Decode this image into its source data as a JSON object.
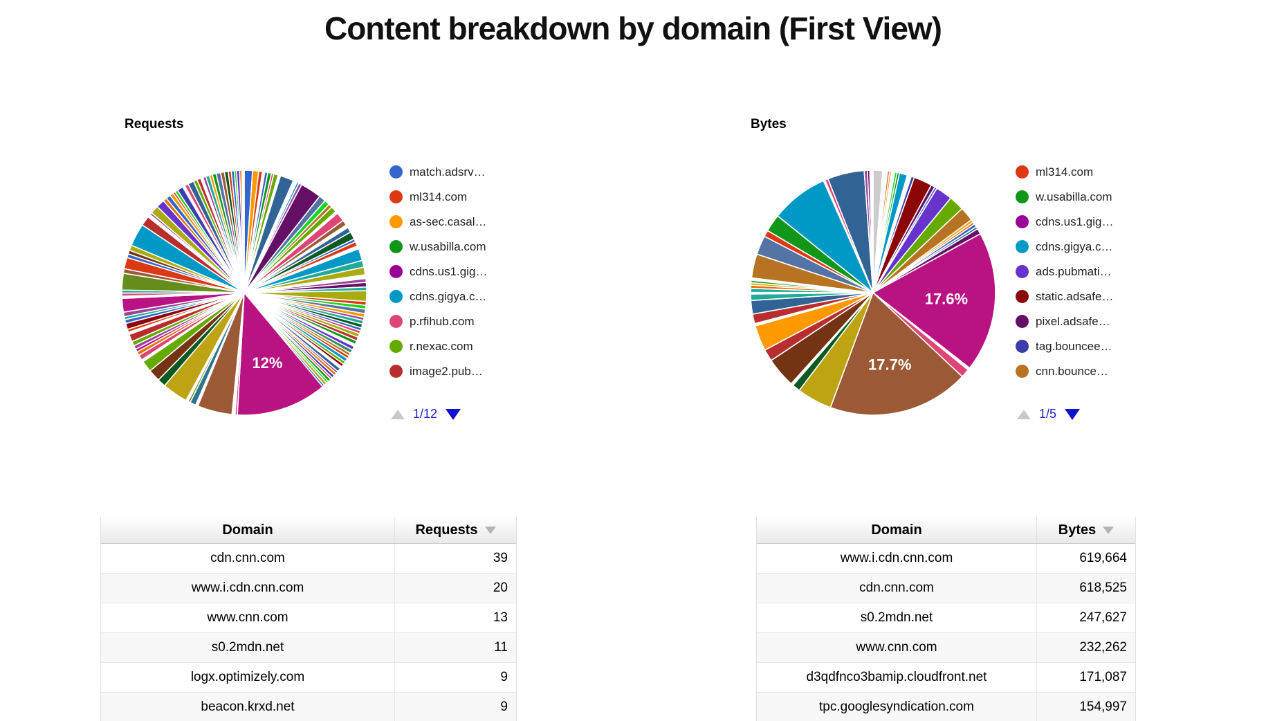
{
  "title": "Content breakdown by domain (First View)",
  "chart_data": [
    {
      "type": "pie",
      "title": "Requests",
      "legend_page": "1/12",
      "legend": [
        {
          "label": "match.adsrv…",
          "color": "#3366cc"
        },
        {
          "label": "ml314.com",
          "color": "#dc3912"
        },
        {
          "label": "as-sec.casal…",
          "color": "#ff9900"
        },
        {
          "label": "w.usabilla.com",
          "color": "#109618"
        },
        {
          "label": "cdns.us1.gig…",
          "color": "#990099"
        },
        {
          "label": "cdns.gigya.c…",
          "color": "#0099c6"
        },
        {
          "label": "p.rfihub.com",
          "color": "#dd4477"
        },
        {
          "label": "r.nexac.com",
          "color": "#66aa00"
        },
        {
          "label": "image2.pub…",
          "color": "#b82e2e"
        }
      ],
      "labeled_slices": [
        {
          "label": "12%",
          "value_pct": 12.0,
          "color": "#b91383"
        }
      ],
      "slices": [
        [
          "#3366cc",
          1.1
        ],
        [
          "#ff9900",
          0.8
        ],
        [
          "#dc3912",
          0.5
        ],
        [
          "#fff",
          0.3
        ],
        [
          "#3366cc",
          0.4
        ],
        [
          "#109618",
          0.5
        ],
        [
          "#dd4477",
          0.3
        ],
        [
          "#66aa00",
          0.6
        ],
        [
          "#fff",
          0.3
        ],
        [
          "#316395",
          1.8
        ],
        [
          "#fff",
          0.5
        ],
        [
          "#0099c6",
          0.3
        ],
        [
          "#994499",
          0.4
        ],
        [
          "#651067",
          2.8
        ],
        [
          "#5574a6",
          0.9
        ],
        [
          "#16d620",
          0.7
        ],
        [
          "#b77322",
          0.5
        ],
        [
          "#66aa00",
          0.8
        ],
        [
          "#fff",
          0.3
        ],
        [
          "#dd4477",
          1.2
        ],
        [
          "#9c5935",
          0.7
        ],
        [
          "#fff",
          0.4
        ],
        [
          "#316395",
          0.7
        ],
        [
          "#0c5922",
          1.0
        ],
        [
          "#3366cc",
          0.4
        ],
        [
          "#dc3912",
          0.6
        ],
        [
          "#fff",
          0.4
        ],
        [
          "#0099c6",
          1.6
        ],
        [
          "#22aa99",
          0.9
        ],
        [
          "#aaaa11",
          1.0
        ],
        [
          "#fff",
          0.5
        ],
        [
          "#994499",
          0.5
        ],
        [
          "#651067",
          0.6
        ],
        [
          "#22aa99",
          0.5
        ],
        [
          "#aaaa11",
          1.4
        ],
        [
          "#dc3912",
          0.5
        ],
        [
          "#16d620",
          0.5
        ],
        [
          "#5574a6",
          0.6
        ],
        [
          "#ff9900",
          0.5
        ],
        [
          "#994499",
          0.4
        ],
        [
          "#22aa99",
          0.5
        ],
        [
          "#0c5922",
          0.5
        ],
        [
          "#3366cc",
          0.4
        ],
        [
          "#dd4477",
          0.4
        ],
        [
          "#aaaa11",
          0.5
        ],
        [
          "#b82e2e",
          0.5
        ],
        [
          "#109618",
          0.5
        ],
        [
          "#fff",
          0.3
        ],
        [
          "#6633cc",
          0.5
        ],
        [
          "#329262",
          0.5
        ],
        [
          "#b77322",
          0.4
        ],
        [
          "#dc3912",
          0.4
        ],
        [
          "#0099c6",
          0.5
        ],
        [
          "#66aa00",
          0.4
        ],
        [
          "#8b0707",
          0.4
        ],
        [
          "#fff",
          0.3
        ],
        [
          "#316395",
          0.5
        ],
        [
          "#994499",
          0.3
        ],
        [
          "#e67300",
          0.4
        ],
        [
          "#3b3eac",
          0.4
        ],
        [
          "#dd4477",
          0.3
        ],
        [
          "#109618",
          0.4
        ],
        [
          "#16d620",
          0.3
        ],
        [
          "#aaaa11",
          0.4
        ],
        [
          "#3366cc",
          0.3
        ],
        [
          "#b91383",
          12.0,
          "12%"
        ],
        [
          "#dd4477",
          0.3
        ],
        [
          "#fff",
          0.4
        ],
        [
          "#9c5935",
          4.6
        ],
        [
          "#fff",
          0.3
        ],
        [
          "#2a778d",
          0.8
        ],
        [
          "#668d1c",
          0.3
        ],
        [
          "#fff",
          0.3
        ],
        [
          "#bea413",
          3.4
        ],
        [
          "#0c5922",
          1.1
        ],
        [
          "#743411",
          1.6
        ],
        [
          "#66aa00",
          1.5
        ],
        [
          "#fff",
          0.3
        ],
        [
          "#dd4477",
          0.7
        ],
        [
          "#e67300",
          0.5
        ],
        [
          "#b91383",
          0.4
        ],
        [
          "#994499",
          0.5
        ],
        [
          "#66aa00",
          0.6
        ],
        [
          "#b82e2e",
          1.0
        ],
        [
          "#fff",
          0.3
        ],
        [
          "#dc3912",
          0.4
        ],
        [
          "#8b0707",
          0.8
        ],
        [
          "#3366cc",
          0.5
        ],
        [
          "#22aa99",
          0.4
        ],
        [
          "#994499",
          0.6
        ],
        [
          "#b91383",
          1.8
        ],
        [
          "#fff",
          0.3
        ],
        [
          "#dd4477",
          0.4
        ],
        [
          "#22aa99",
          0.4
        ],
        [
          "#668d1c",
          2.2
        ],
        [
          "#9c5935",
          0.6
        ],
        [
          "#dc3912",
          1.5
        ],
        [
          "#3366cc",
          0.5
        ],
        [
          "#743411",
          0.5
        ],
        [
          "#aaaa11",
          0.7
        ],
        [
          "#0099c6",
          3.0
        ],
        [
          "#b82e2e",
          1.3
        ],
        [
          "#fff",
          0.4
        ],
        [
          "#994499",
          0.3
        ],
        [
          "#aaaa11",
          1.1
        ],
        [
          "#6633cc",
          1.1
        ],
        [
          "#e67300",
          0.5
        ],
        [
          "#3366cc",
          0.6
        ],
        [
          "#ff9900",
          0.5
        ],
        [
          "#dc3912",
          0.3
        ],
        [
          "#16d620",
          0.4
        ],
        [
          "#3b3eac",
          0.8
        ],
        [
          "#fff",
          0.3
        ],
        [
          "#dd4477",
          0.5
        ],
        [
          "#316395",
          0.8
        ],
        [
          "#66aa00",
          0.5
        ],
        [
          "#b82e2e",
          0.5
        ],
        [
          "#fff",
          0.3
        ],
        [
          "#994499",
          0.4
        ],
        [
          "#22aa99",
          0.5
        ],
        [
          "#ff9900",
          0.4
        ],
        [
          "#109618",
          0.5
        ],
        [
          "#5574a6",
          0.6
        ],
        [
          "#9c5935",
          0.5
        ],
        [
          "#0c5922",
          0.5
        ],
        [
          "#dc3912",
          0.4
        ],
        [
          "#3366cc",
          0.4
        ],
        [
          "#16d620",
          0.3
        ],
        [
          "#6633cc",
          0.4
        ],
        [
          "#e67300",
          0.3
        ],
        [
          "#fff",
          0.3
        ]
      ]
    },
    {
      "type": "pie",
      "title": "Bytes",
      "legend_page": "1/5",
      "legend": [
        {
          "label": "ml314.com",
          "color": "#dc3912"
        },
        {
          "label": "w.usabilla.com",
          "color": "#109618"
        },
        {
          "label": "cdns.us1.gig…",
          "color": "#990099"
        },
        {
          "label": "cdns.gigya.c…",
          "color": "#0099c6"
        },
        {
          "label": "ads.pubmati…",
          "color": "#6633cc"
        },
        {
          "label": "static.adsafe…",
          "color": "#8b0707"
        },
        {
          "label": "pixel.adsafe…",
          "color": "#651067"
        },
        {
          "label": "tag.bouncee…",
          "color": "#3b3eac"
        },
        {
          "label": "cnn.bounce…",
          "color": "#b77322"
        }
      ],
      "labeled_slices": [
        {
          "label": "17.6%",
          "value_pct": 17.6,
          "color": "#b91383"
        },
        {
          "label": "17.7%",
          "value_pct": 17.7,
          "color": "#9c5935"
        }
      ],
      "slices": [
        [
          "#cccccc",
          1.2
        ],
        [
          "#fff",
          0.6
        ],
        [
          "#dc3912",
          0.25
        ],
        [
          "#ff9900",
          0.25
        ],
        [
          "#fff",
          0.4
        ],
        [
          "#16d620",
          0.3
        ],
        [
          "#109618",
          0.3
        ],
        [
          "#0099c6",
          1.0
        ],
        [
          "#fff",
          0.5
        ],
        [
          "#3b3eac",
          0.4
        ],
        [
          "#8b0707",
          2.3
        ],
        [
          "#651067",
          0.5
        ],
        [
          "#3366cc",
          0.3
        ],
        [
          "#6633cc",
          2.1
        ],
        [
          "#66aa00",
          1.9
        ],
        [
          "#b77322",
          1.8
        ],
        [
          "#ff9900",
          0.35
        ],
        [
          "#e67300",
          0.3
        ],
        [
          "#3366cc",
          0.4
        ],
        [
          "#316395",
          0.3
        ],
        [
          "#651067",
          0.7
        ],
        [
          "#b91383",
          17.6,
          "17.6%"
        ],
        [
          "#fff",
          0.3
        ],
        [
          "#dd4477",
          1.1
        ],
        [
          "#9c5935",
          17.7,
          "17.7%"
        ],
        [
          "#bea413",
          4.4
        ],
        [
          "#0c5922",
          1.0
        ],
        [
          "#fff",
          0.3
        ],
        [
          "#743411",
          3.8
        ],
        [
          "#b82e2e",
          1.5
        ],
        [
          "#ff9900",
          3.2
        ],
        [
          "#fff",
          0.3
        ],
        [
          "#b82e2e",
          1.2
        ],
        [
          "#316395",
          1.7
        ],
        [
          "#22aa99",
          0.8
        ],
        [
          "#fff",
          0.2
        ],
        [
          "#22aa99",
          0.5
        ],
        [
          "#e67300",
          0.4
        ],
        [
          "#ff9900",
          0.3
        ],
        [
          "#109618",
          0.3
        ],
        [
          "#fff",
          0.3
        ],
        [
          "#b77322",
          3.0
        ],
        [
          "#5574a6",
          2.4
        ],
        [
          "#dc3912",
          0.8
        ],
        [
          "#109618",
          2.2
        ],
        [
          "#0099c6",
          7.2
        ],
        [
          "#fff",
          0.2
        ],
        [
          "#dd4477",
          0.4
        ],
        [
          "#316395",
          4.6
        ],
        [
          "#994499",
          0.4
        ],
        [
          "#651067",
          0.3
        ],
        [
          "#fff",
          0.4
        ]
      ]
    }
  ],
  "tables": [
    {
      "columns": [
        "Domain",
        "Requests"
      ],
      "sorted_column": "Requests",
      "sort_direction": "desc",
      "rows": [
        [
          "cdn.cnn.com",
          "39"
        ],
        [
          "www.i.cdn.cnn.com",
          "20"
        ],
        [
          "www.cnn.com",
          "13"
        ],
        [
          "s0.2mdn.net",
          "11"
        ],
        [
          "logx.optimizely.com",
          "9"
        ],
        [
          "beacon.krxd.net",
          "9"
        ]
      ]
    },
    {
      "columns": [
        "Domain",
        "Bytes"
      ],
      "sorted_column": "Bytes",
      "sort_direction": "desc",
      "rows": [
        [
          "www.i.cdn.cnn.com",
          "619,664"
        ],
        [
          "cdn.cnn.com",
          "618,525"
        ],
        [
          "s0.2mdn.net",
          "247,627"
        ],
        [
          "www.cnn.com",
          "232,262"
        ],
        [
          "d3qdfnco3bamip.cloudfront.net",
          "171,087"
        ],
        [
          "tpc.googlesyndication.com",
          "154,997"
        ]
      ]
    }
  ]
}
